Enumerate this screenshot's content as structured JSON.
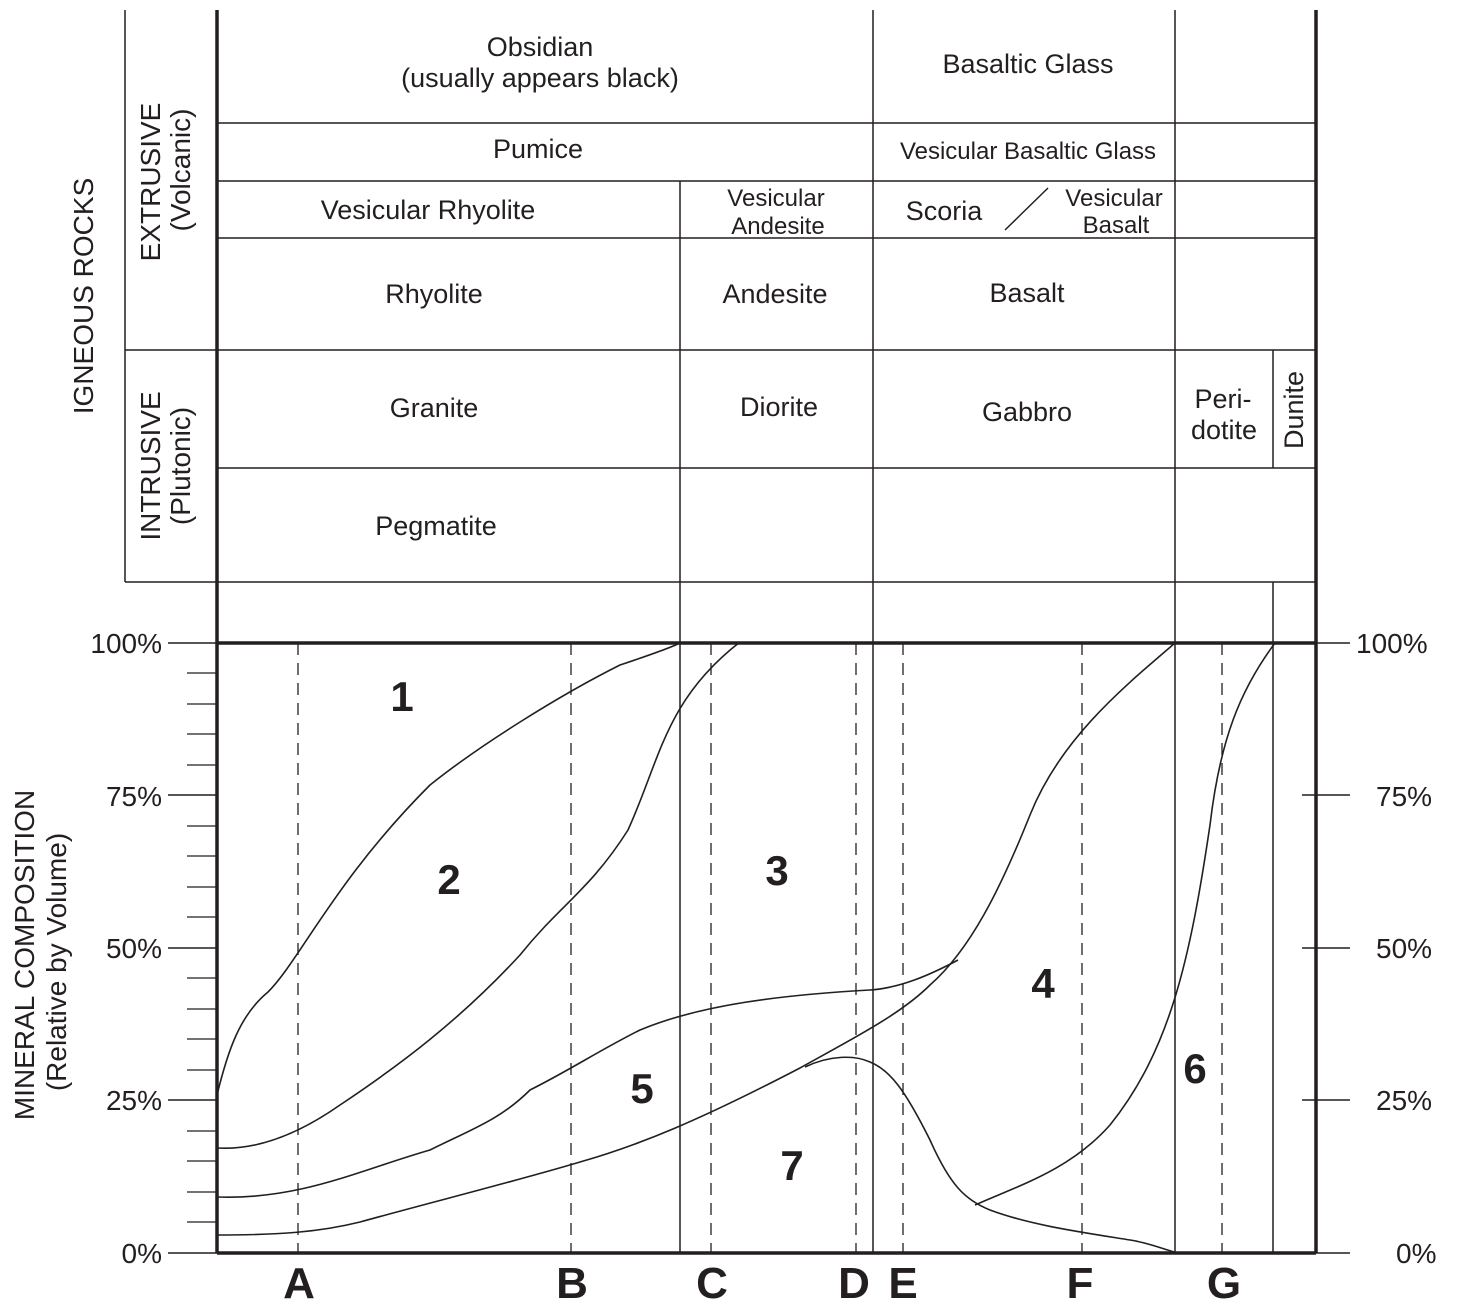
{
  "rock_chart": {
    "side_title": "IGNEOUS ROCKS",
    "extrusive": {
      "label": "EXTRUSIVE",
      "sub": "(Volcanic)"
    },
    "intrusive": {
      "label": "INTRUSIVE",
      "sub": "(Plutonic)"
    },
    "obsidian": {
      "line1": "Obsidian",
      "line2": "(usually appears black)"
    },
    "basaltic_glass": "Basaltic Glass",
    "pumice": "Pumice",
    "vesicular_basaltic_glass": "Vesicular Basaltic Glass",
    "vesicular_rhyolite": "Vesicular Rhyolite",
    "vesicular_andesite": {
      "line1": "Vesicular",
      "line2": "Andesite"
    },
    "scoria": "Scoria",
    "vesicular_basalt": {
      "line1": "Vesicular",
      "line2": "Basalt"
    },
    "rhyolite": "Rhyolite",
    "andesite": "Andesite",
    "basalt": "Basalt",
    "granite": "Granite",
    "diorite": "Diorite",
    "gabbro": "Gabbro",
    "peridotite": {
      "line1": "Peri-",
      "line2": "dotite"
    },
    "dunite": "Dunite",
    "pegmatite": "Pegmatite"
  },
  "composition": {
    "axis_title": {
      "line1": "MINERAL COMPOSITION",
      "line2": "(Relative by Volume)"
    },
    "y_ticks_left": [
      "100%",
      "75%",
      "50%",
      "25%",
      "0%"
    ],
    "y_ticks_right": [
      "100%",
      "75%",
      "50%",
      "25%",
      "0%"
    ],
    "regions": [
      "1",
      "2",
      "3",
      "4",
      "5",
      "6",
      "7"
    ],
    "columns": [
      "A",
      "B",
      "C",
      "D",
      "E",
      "F",
      "G"
    ]
  },
  "colors": {
    "ink": "#231f20",
    "background": "#ffffff"
  }
}
